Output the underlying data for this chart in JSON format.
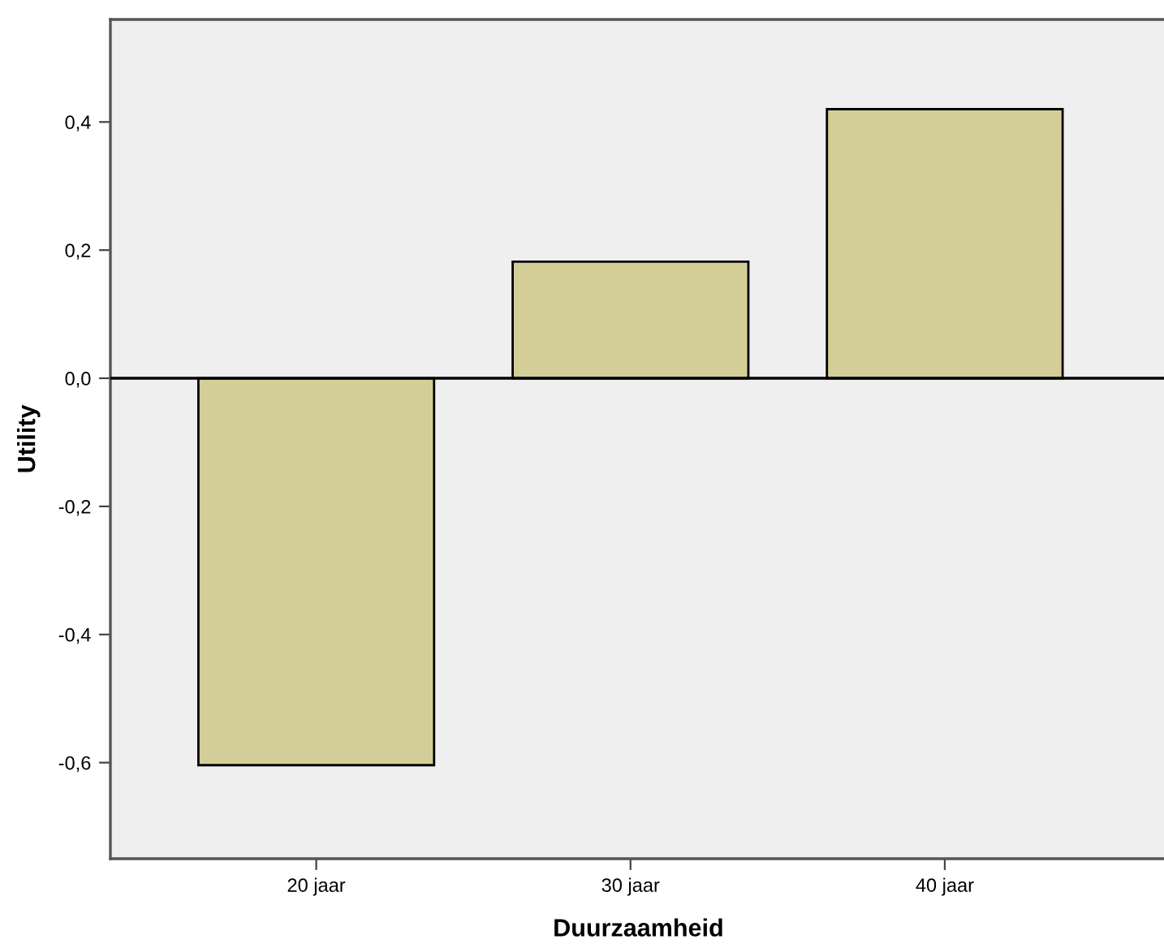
{
  "chart_data": {
    "type": "bar",
    "xlabel": "Duurzaamheid",
    "ylabel": "Utility",
    "categories": [
      "20 jaar",
      "30 jaar",
      "40 jaar"
    ],
    "values": [
      -0.604,
      0.182,
      0.42
    ],
    "color": "#d3ce97",
    "ylim": [
      -0.75,
      0.56
    ],
    "yticks": [
      {
        "value": -0.6,
        "label": "-0,6"
      },
      {
        "value": -0.4,
        "label": "-0,4"
      },
      {
        "value": -0.2,
        "label": "-0,2"
      },
      {
        "value": 0.0,
        "label": "0,0"
      },
      {
        "value": 0.2,
        "label": "0,2"
      },
      {
        "value": 0.4,
        "label": "0,4"
      }
    ],
    "ref_lines": [
      {
        "axis": "y",
        "value": 0,
        "color": "#000000"
      }
    ],
    "grid": false,
    "legend": false
  }
}
